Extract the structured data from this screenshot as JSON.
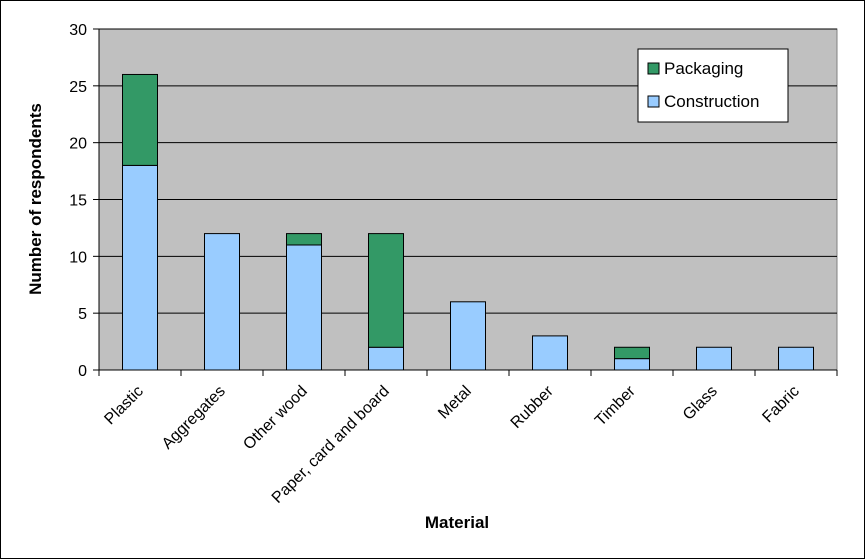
{
  "chart_data": {
    "type": "bar",
    "stacked": true,
    "categories": [
      "Plastic",
      "Aggregates",
      "Other wood",
      "Paper, card and board",
      "Metal",
      "Rubber",
      "Timber",
      "Glass",
      "Fabric"
    ],
    "series": [
      {
        "name": "Construction",
        "values": [
          18,
          12,
          11,
          2,
          6,
          3,
          1,
          2,
          2
        ],
        "color": "#99ccff"
      },
      {
        "name": "Packaging",
        "values": [
          8,
          0,
          1,
          10,
          0,
          0,
          1,
          0,
          0
        ],
        "color": "#339966"
      }
    ],
    "xlabel": "Material",
    "ylabel": "Number of respondents",
    "ylim": [
      0,
      30
    ],
    "yticks": [
      0,
      5,
      10,
      15,
      20,
      25,
      30
    ],
    "grid": true,
    "plot_background": "#c0c0c0",
    "legend_position": "top-right",
    "legend_order": [
      "Packaging",
      "Construction"
    ]
  }
}
